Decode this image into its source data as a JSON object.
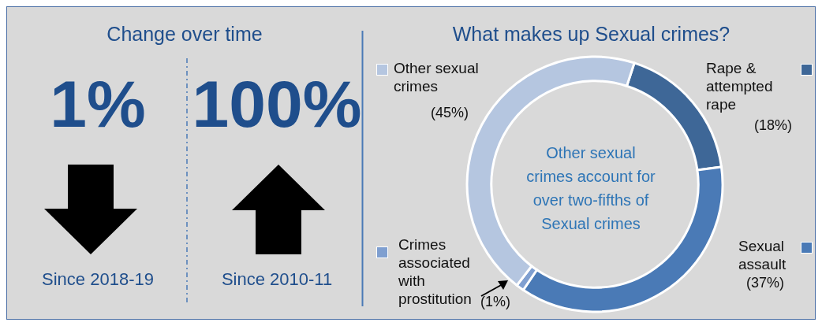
{
  "chart_data": [
    {
      "type": "other",
      "title": "Change over time",
      "annotations": [
        "1%",
        "Since 2018-19",
        "100%",
        "Since 2010-11"
      ]
    },
    {
      "type": "donut",
      "title": "What makes up Sexual crimes?",
      "categories": [
        "Rape & attempted rape",
        "Sexual assault",
        "Crimes associated with prostitution",
        "Other sexual crimes"
      ],
      "values": [
        18,
        37,
        1,
        45
      ],
      "colors": [
        "#3e6797",
        "#4a7ab6",
        "#7f9fd0",
        "#b5c6e0"
      ],
      "legend": "left",
      "value_labels": [
        "(18%)",
        "(37%)",
        "(1%)",
        "(45%)"
      ],
      "annotations": [
        "Other sexual crimes account for over two-fifths of Sexual crimes"
      ]
    }
  ]
}
